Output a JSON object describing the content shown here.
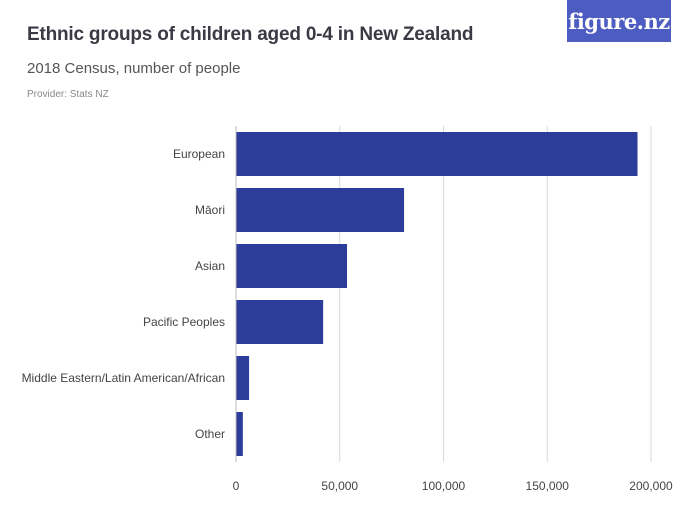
{
  "header": {
    "title": "Ethnic groups of children aged 0-4 in New Zealand",
    "subtitle": "2018 Census, number of people",
    "provider": "Provider: Stats NZ",
    "logo_text": "figure.nz"
  },
  "colors": {
    "bar": "#2c3e9a",
    "grid": "#d9d9d9",
    "logo_bg": "#4d5cc0"
  },
  "chart_data": {
    "type": "bar",
    "orientation": "horizontal",
    "categories": [
      "European",
      "Māori",
      "Asian",
      "Pacific Peoples",
      "Middle Eastern/Latin American/African",
      "Other"
    ],
    "values": [
      193500,
      81000,
      53500,
      42000,
      6300,
      3300
    ],
    "xlim": [
      0,
      200000
    ],
    "xticks": [
      0,
      50000,
      100000,
      150000,
      200000
    ],
    "xtick_labels": [
      "0",
      "50,000",
      "100,000",
      "150,000",
      "200,000"
    ],
    "grid": true
  }
}
